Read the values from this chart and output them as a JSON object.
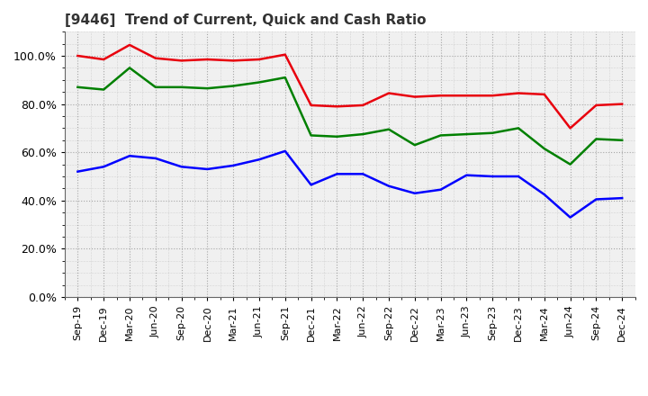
{
  "title": "[9446]  Trend of Current, Quick and Cash Ratio",
  "labels": [
    "Sep-19",
    "Dec-19",
    "Mar-20",
    "Jun-20",
    "Sep-20",
    "Dec-20",
    "Mar-21",
    "Jun-21",
    "Sep-21",
    "Dec-21",
    "Mar-22",
    "Jun-22",
    "Sep-22",
    "Dec-22",
    "Mar-23",
    "Jun-23",
    "Sep-23",
    "Dec-23",
    "Mar-24",
    "Jun-24",
    "Sep-24",
    "Dec-24"
  ],
  "current_ratio": [
    100.0,
    98.5,
    104.5,
    99.0,
    98.0,
    98.5,
    98.0,
    98.5,
    100.5,
    79.5,
    79.0,
    79.5,
    84.5,
    83.0,
    83.5,
    83.5,
    83.5,
    84.5,
    84.0,
    70.0,
    79.5,
    80.0
  ],
  "quick_ratio": [
    87.0,
    86.0,
    95.0,
    87.0,
    87.0,
    86.5,
    87.5,
    89.0,
    91.0,
    67.0,
    66.5,
    67.5,
    69.5,
    63.0,
    67.0,
    67.5,
    68.0,
    70.0,
    61.5,
    55.0,
    65.5,
    65.0
  ],
  "cash_ratio": [
    52.0,
    54.0,
    58.5,
    57.5,
    54.0,
    53.0,
    54.5,
    57.0,
    60.5,
    46.5,
    51.0,
    51.0,
    46.0,
    43.0,
    44.5,
    50.5,
    50.0,
    50.0,
    42.5,
    33.0,
    40.5,
    41.0
  ],
  "current_color": "#e8000d",
  "quick_color": "#008000",
  "cash_color": "#0000ff",
  "ylim": [
    0.0,
    110.0
  ],
  "yticks": [
    0.0,
    20.0,
    40.0,
    60.0,
    80.0,
    100.0
  ],
  "background_color": "#ffffff",
  "plot_bg_color": "#f0f0f0",
  "grid_color": "#888888",
  "line_width": 1.8,
  "title_fontsize": 11,
  "tick_fontsize": 8,
  "legend_fontsize": 9
}
